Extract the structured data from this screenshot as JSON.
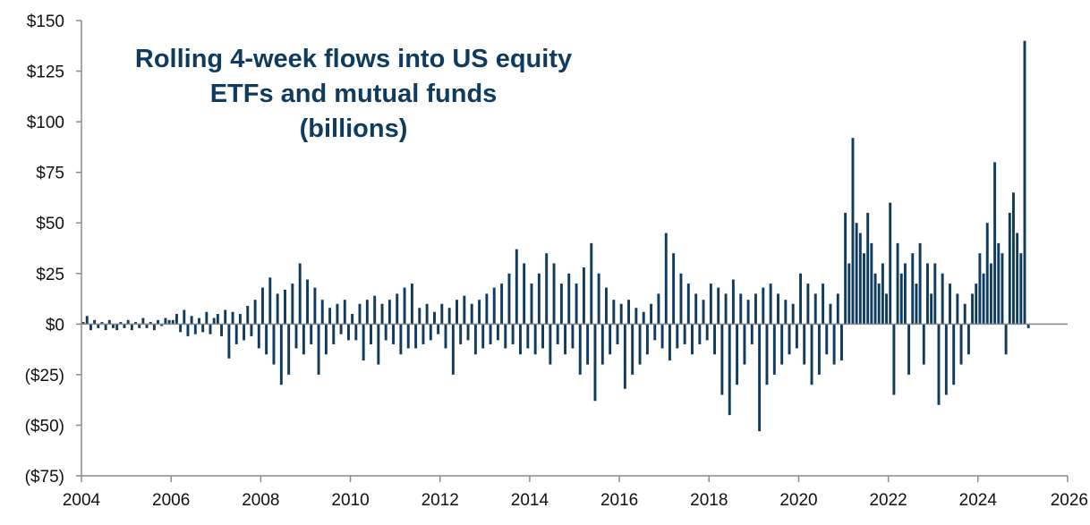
{
  "chart_data": {
    "type": "bar",
    "title_lines": [
      "Rolling 4-week flows into US equity",
      "ETFs and mutual funds",
      "(billions)"
    ],
    "xlabel": "",
    "ylabel": "",
    "xlim": [
      2004,
      2026
    ],
    "ylim": [
      -75,
      150
    ],
    "x_ticks": [
      2004,
      2006,
      2008,
      2010,
      2012,
      2014,
      2016,
      2018,
      2020,
      2022,
      2024,
      2026
    ],
    "x_tick_labels": [
      "2004",
      "2006",
      "2008",
      "2010",
      "2012",
      "2014",
      "2016",
      "2018",
      "2020",
      "2022",
      "2024",
      "2026"
    ],
    "y_ticks": [
      150,
      125,
      100,
      75,
      50,
      25,
      0,
      -25,
      -50,
      -75
    ],
    "y_tick_labels": [
      "$150",
      "$125",
      "$100",
      "$75",
      "$50",
      "$25",
      "$0",
      "($25)",
      "($50)",
      "($75)"
    ],
    "grid": false,
    "legend": "none",
    "bar_color": "#0f3b5f",
    "series": [
      {
        "values_per_year": {
          "2004": [
            1,
            4,
            -3,
            2,
            -2,
            1,
            -3,
            2,
            -2,
            -3,
            1,
            -2
          ],
          "2005": [
            2,
            -3,
            1,
            -2,
            3,
            -2,
            1,
            -3,
            2,
            -1,
            3,
            2
          ],
          "2006": [
            2,
            5,
            -4,
            7,
            -6,
            4,
            -5,
            3,
            -4,
            6,
            -5,
            3
          ],
          "2007": [
            5,
            -6,
            7,
            -17,
            6,
            -10,
            5,
            -8,
            9,
            -6,
            12,
            -12
          ],
          "2008": [
            18,
            -15,
            23,
            -20,
            15,
            -30,
            17,
            -25,
            20,
            -12,
            30,
            -15
          ],
          "2009": [
            22,
            -10,
            18,
            -25,
            12,
            -15,
            8,
            -10,
            10,
            -5,
            12,
            -8
          ],
          "2010": [
            5,
            -8,
            10,
            -18,
            12,
            -10,
            14,
            -20,
            10,
            -8,
            12,
            -10
          ],
          "2011": [
            15,
            -15,
            18,
            -12,
            20,
            -12,
            8,
            -10,
            10,
            -8,
            6,
            -5
          ],
          "2012": [
            10,
            -12,
            8,
            -25,
            12,
            -10,
            14,
            -8,
            10,
            -15,
            12,
            -12
          ],
          "2013": [
            15,
            -10,
            18,
            -8,
            20,
            -12,
            25,
            -10,
            37,
            -15,
            30,
            -12
          ],
          "2014": [
            20,
            -15,
            25,
            -12,
            35,
            -20,
            30,
            -10,
            20,
            -15,
            25,
            -12
          ],
          "2015": [
            20,
            -25,
            28,
            -20,
            40,
            -38,
            25,
            -20,
            18,
            -15,
            12,
            -10
          ],
          "2016": [
            10,
            -32,
            12,
            -25,
            8,
            -20,
            6,
            -15,
            10,
            -8,
            15,
            -12
          ],
          "2017": [
            45,
            -18,
            35,
            -12,
            25,
            -10,
            20,
            -15,
            15,
            -10,
            12,
            -8
          ],
          "2018": [
            20,
            -15,
            18,
            -35,
            15,
            -45,
            22,
            -30,
            15,
            -20,
            12,
            -10
          ],
          "2019": [
            15,
            -53,
            18,
            -30,
            20,
            -25,
            15,
            -20,
            12,
            -15,
            10,
            -12
          ],
          "2020": [
            25,
            -20,
            20,
            -30,
            15,
            -25,
            20,
            -15,
            10,
            -20,
            15,
            -18
          ],
          "2021": [
            55,
            30,
            92,
            50,
            45,
            35,
            55,
            40,
            25,
            20,
            30,
            15
          ],
          "2022": [
            60,
            -35,
            40,
            25,
            30,
            -25,
            35,
            20,
            40,
            -20,
            30,
            15
          ],
          "2023": [
            30,
            -40,
            25,
            -35,
            20,
            -30,
            15,
            -20,
            10,
            -15,
            15,
            20
          ],
          "2024": [
            35,
            25,
            50,
            30,
            80,
            40,
            35,
            -15,
            55,
            65,
            45,
            35
          ],
          "2025": [
            140,
            -2
          ]
        }
      }
    ]
  }
}
